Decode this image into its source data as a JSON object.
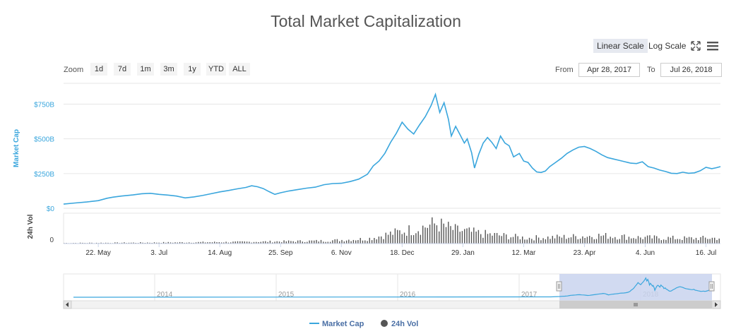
{
  "title": "Total Market Capitalization",
  "toolbar": {
    "linear_label": "Linear Scale",
    "log_label": "Log Scale",
    "fullscreen_icon": "fullscreen-icon",
    "menu_icon": "menu-icon"
  },
  "zoom": {
    "label": "Zoom",
    "buttons": [
      "1d",
      "7d",
      "1m",
      "3m",
      "1y",
      "YTD",
      "ALL"
    ]
  },
  "range": {
    "from_label": "From",
    "from_value": "Apr 28, 2017",
    "to_label": "To",
    "to_value": "Jul 26, 2018"
  },
  "colors": {
    "market_cap": "#3aa6dd",
    "volume": "#555555",
    "navigator_fill": "#c9d3ef"
  },
  "chart_data": {
    "type": "line",
    "title": "Total Market Capitalization",
    "ylabel": "Market Cap",
    "ylim": [
      0,
      900
    ],
    "yticks": [
      {
        "value": 0,
        "label": "$0"
      },
      {
        "value": 250,
        "label": "$250B"
      },
      {
        "value": 500,
        "label": "$500B"
      },
      {
        "value": 750,
        "label": "$750B"
      }
    ],
    "xticks": [
      "22. May",
      "3. Jul",
      "14. Aug",
      "25. Sep",
      "6. Nov",
      "18. Dec",
      "29. Jan",
      "12. Mar",
      "23. Apr",
      "4. Jun",
      "16. Jul"
    ],
    "xtick_days": [
      24,
      66,
      108,
      150,
      192,
      234,
      276,
      318,
      360,
      402,
      444
    ],
    "x_range_days": [
      0,
      454
    ],
    "series": [
      {
        "name": "Market Cap",
        "unit": "billion USD",
        "points": [
          [
            0,
            30
          ],
          [
            8,
            38
          ],
          [
            16,
            45
          ],
          [
            24,
            55
          ],
          [
            30,
            72
          ],
          [
            34,
            80
          ],
          [
            40,
            88
          ],
          [
            48,
            96
          ],
          [
            54,
            105
          ],
          [
            60,
            108
          ],
          [
            66,
            100
          ],
          [
            72,
            95
          ],
          [
            78,
            88
          ],
          [
            84,
            75
          ],
          [
            90,
            82
          ],
          [
            96,
            92
          ],
          [
            102,
            105
          ],
          [
            108,
            118
          ],
          [
            114,
            128
          ],
          [
            120,
            140
          ],
          [
            126,
            150
          ],
          [
            130,
            162
          ],
          [
            134,
            155
          ],
          [
            138,
            142
          ],
          [
            142,
            120
          ],
          [
            146,
            100
          ],
          [
            150,
            112
          ],
          [
            156,
            125
          ],
          [
            162,
            135
          ],
          [
            168,
            145
          ],
          [
            174,
            152
          ],
          [
            180,
            170
          ],
          [
            186,
            178
          ],
          [
            192,
            180
          ],
          [
            198,
            192
          ],
          [
            204,
            210
          ],
          [
            210,
            245
          ],
          [
            214,
            305
          ],
          [
            218,
            340
          ],
          [
            222,
            395
          ],
          [
            226,
            475
          ],
          [
            230,
            540
          ],
          [
            234,
            620
          ],
          [
            238,
            570
          ],
          [
            242,
            535
          ],
          [
            246,
            600
          ],
          [
            250,
            660
          ],
          [
            254,
            740
          ],
          [
            257,
            820
          ],
          [
            260,
            690
          ],
          [
            263,
            760
          ],
          [
            266,
            640
          ],
          [
            268,
            520
          ],
          [
            271,
            590
          ],
          [
            274,
            530
          ],
          [
            277,
            470
          ],
          [
            279,
            500
          ],
          [
            282,
            400
          ],
          [
            284,
            290
          ],
          [
            287,
            390
          ],
          [
            290,
            470
          ],
          [
            293,
            510
          ],
          [
            296,
            475
          ],
          [
            299,
            430
          ],
          [
            302,
            520
          ],
          [
            305,
            470
          ],
          [
            308,
            450
          ],
          [
            311,
            370
          ],
          [
            315,
            395
          ],
          [
            318,
            340
          ],
          [
            321,
            330
          ],
          [
            324,
            290
          ],
          [
            327,
            262
          ],
          [
            330,
            258
          ],
          [
            333,
            268
          ],
          [
            336,
            300
          ],
          [
            340,
            330
          ],
          [
            344,
            360
          ],
          [
            348,
            395
          ],
          [
            352,
            420
          ],
          [
            356,
            440
          ],
          [
            360,
            445
          ],
          [
            364,
            430
          ],
          [
            368,
            410
          ],
          [
            372,
            385
          ],
          [
            376,
            365
          ],
          [
            380,
            355
          ],
          [
            384,
            345
          ],
          [
            388,
            335
          ],
          [
            392,
            325
          ],
          [
            396,
            322
          ],
          [
            400,
            335
          ],
          [
            404,
            300
          ],
          [
            408,
            290
          ],
          [
            412,
            275
          ],
          [
            416,
            265
          ],
          [
            420,
            252
          ],
          [
            424,
            250
          ],
          [
            428,
            260
          ],
          [
            432,
            252
          ],
          [
            436,
            255
          ],
          [
            440,
            270
          ],
          [
            444,
            295
          ],
          [
            448,
            285
          ],
          [
            451,
            292
          ],
          [
            454,
            300
          ]
        ]
      },
      {
        "name": "24h Vol",
        "unit": "billion USD",
        "ylim": [
          0,
          60
        ],
        "note": "daily volume bars, peak near 18. Dec"
      }
    ],
    "volume_envelope": [
      [
        0,
        1.5
      ],
      [
        60,
        2.5
      ],
      [
        120,
        4
      ],
      [
        180,
        7
      ],
      [
        210,
        12
      ],
      [
        230,
        28
      ],
      [
        245,
        38
      ],
      [
        257,
        50
      ],
      [
        270,
        34
      ],
      [
        290,
        24
      ],
      [
        320,
        14
      ],
      [
        350,
        17
      ],
      [
        370,
        20
      ],
      [
        400,
        15
      ],
      [
        430,
        13
      ],
      [
        454,
        14
      ]
    ],
    "navigator": {
      "years": [
        "2014",
        "2015",
        "2016",
        "2017",
        "2018"
      ],
      "selection": "Apr 28, 2017 – Jul 26, 2018"
    },
    "legend": [
      {
        "name": "Market Cap",
        "marker": "line"
      },
      {
        "name": "24h Vol",
        "marker": "circle"
      }
    ]
  }
}
